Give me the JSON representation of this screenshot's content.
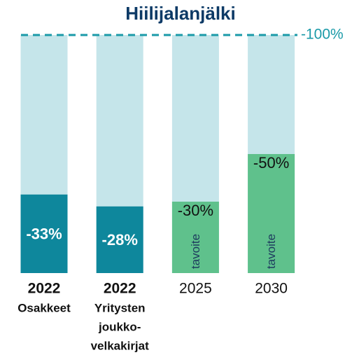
{
  "chart_data": {
    "type": "bar",
    "title": "Hiilijalanjälki",
    "categories": [
      "2022",
      "2022",
      "2025",
      "2030"
    ],
    "category_notes": [
      [
        "Osakkeet"
      ],
      [
        "Yritysten",
        "joukko-",
        "velkakirjat"
      ],
      [],
      []
    ],
    "values": [
      -33,
      -28,
      -30,
      -50
    ],
    "value_labels": [
      "-33%",
      "-28%",
      "-30%",
      "-50%"
    ],
    "colors": [
      "#0e879c",
      "#0e879c",
      "#5fc18c",
      "#5fc18c"
    ],
    "highlight": [
      true,
      true,
      false,
      false
    ],
    "bar_annotations": [
      {
        "index": 2,
        "text": "tavoite"
      },
      {
        "index": 3,
        "text": "tavoite"
      }
    ],
    "background_color": "#c5e5ea",
    "ylim": [
      0,
      -100
    ],
    "yticks": [
      {
        "value": -100,
        "label": "-100%"
      }
    ],
    "reference_line_color": "#1a9aa8"
  }
}
